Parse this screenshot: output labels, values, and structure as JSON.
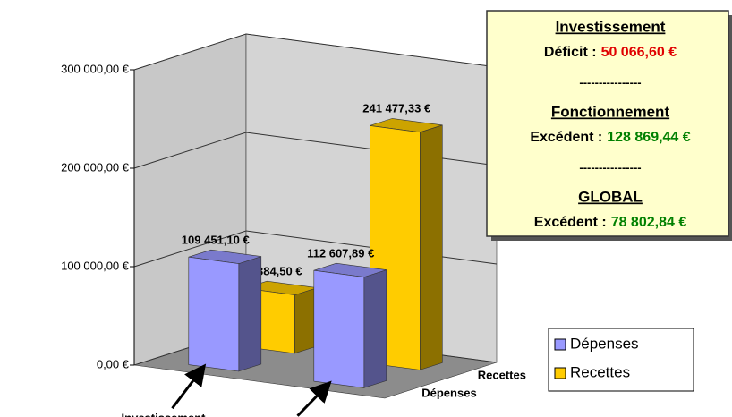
{
  "chart_data": {
    "type": "bar3d",
    "categories": [
      "Investissement",
      "Fonctionnement"
    ],
    "series": [
      {
        "name": "Dépenses",
        "color": "#9999ff",
        "values": [
          109451.1,
          112607.89
        ],
        "value_labels": [
          "109 451,10 €",
          "112 607,89 €"
        ]
      },
      {
        "name": "Recettes",
        "color": "#ffcc00",
        "values": [
          59384.5,
          241477.33
        ],
        "value_labels": [
          "59 384,50 €",
          "241 477,33 €"
        ]
      }
    ],
    "ylim": [
      0,
      300000
    ],
    "yticks": [
      {
        "value": 0,
        "label": "0,00 €"
      },
      {
        "value": 100000,
        "label": "100 000,00 €"
      },
      {
        "value": 200000,
        "label": "200 000,00 €"
      },
      {
        "value": 300000,
        "label": "300 000,00 €"
      }
    ],
    "grid": true,
    "legend": "right",
    "info_box": {
      "separator": "----------------",
      "sections": [
        {
          "heading": "Investissement",
          "label": "Déficit :",
          "value": "50 066,60 €",
          "color": "#e00000"
        },
        {
          "heading": "Fonctionnement",
          "label": "Excédent :",
          "value": "128 869,44 €",
          "color": "#008000"
        },
        {
          "heading": "GLOBAL",
          "label": "Excédent :",
          "value": "78 802,84 €",
          "color": "#008000"
        }
      ]
    }
  }
}
